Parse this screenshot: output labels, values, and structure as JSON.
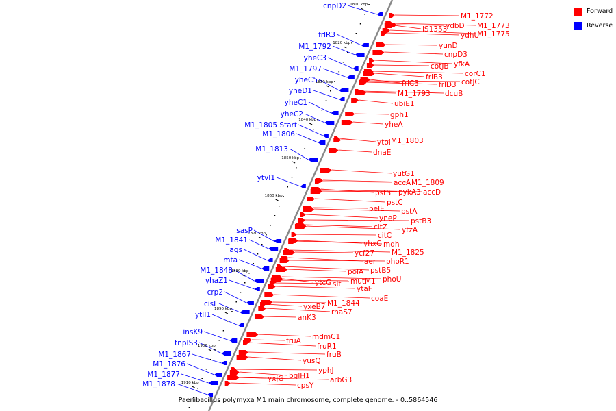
{
  "caption": "Paenibacillus polymyxa M1 main chromosome, complete genome. - 0..5864546",
  "legend": {
    "forward_label": "Forward",
    "reverse_label": "Reverse"
  },
  "colors": {
    "forward": "#ff0000",
    "reverse": "#0000ff",
    "axis": "#888888",
    "tick": "#000000"
  },
  "axis": {
    "tick_labels": [
      "1810 kbp",
      "1820 kbp",
      "1830 kbp",
      "1840 kbp",
      "1850 kbp",
      "1860 kbp",
      "1870 kbp",
      "1880 kbp",
      "1890 kbp",
      "1900 kbp",
      "1910 kbp"
    ]
  },
  "forward_genes": [
    "M1_1772",
    "M1_1773",
    "iS1353",
    "ydbD",
    "ydhU",
    "M1_1775",
    "yunD",
    "cnpD3",
    "yfkA",
    "cotJB",
    "corC1",
    "frlB3",
    "cotJC",
    "frlD3",
    "frlC3",
    "M1_1793",
    "dcuB",
    "ubiE1",
    "gph1",
    "yheA",
    "ytoI",
    "M1_1803",
    "dnaE",
    "yutG1",
    "accA",
    "M1_1809",
    "pstS",
    "pykA3",
    "accD",
    "pstC",
    "pelE",
    "pstA",
    "yneP",
    "pstB3",
    "citZ",
    "ytzA",
    "citC",
    "yhxC",
    "mdh",
    "ycf27",
    "M1_1825",
    "aer",
    "phoR1",
    "polA",
    "pstB5",
    "mutM1",
    "phoU",
    "ytcG",
    "slt",
    "ytaF",
    "coaE",
    "M1_1844",
    "yxeB7",
    "rhaS7",
    "anK3",
    "mdmC1",
    "fruR1",
    "fruA",
    "fruB",
    "yusQ",
    "yphJ",
    "arbG3",
    "bglH1",
    "yxjG",
    "cpsY"
  ],
  "reverse_genes": [
    "cnpD2",
    "frlR3",
    "M1_1792",
    "yheC3",
    "M1_1797",
    "yheC5",
    "yheD1",
    "yheC1",
    "yheC2",
    "M1_1805 Start",
    "M1_1806",
    "M1_1813",
    "ytvI1",
    "sasP",
    "M1_1841",
    "ags",
    "mta",
    "M1_1848",
    "yhaZ1",
    "crp2",
    "cisL",
    "ytlI1",
    "insK9",
    "tnpIS3",
    "M1_1867",
    "M1_1876",
    "M1_1877",
    "M1_1878"
  ]
}
